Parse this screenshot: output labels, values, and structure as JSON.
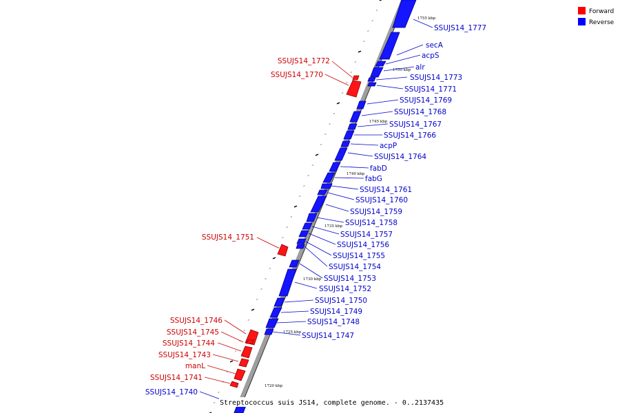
{
  "legend": [
    {
      "label": "Forward",
      "color": "#ff0000"
    },
    {
      "label": "Reverse",
      "color": "#0000ff"
    }
  ],
  "caption": "Streptococcus suis JS14, complete genome. - 0..2137435",
  "ticks": [
    "1755 kbp",
    "1750 kbp",
    "1745 kbp",
    "1740 kbp",
    "1735 kbp",
    "1730 kbp",
    "1725 kbp",
    "1720 kbp"
  ],
  "reverse_genes": [
    "SSUJS14_1777",
    "secA",
    "acpS",
    "alr",
    "SSUJS14_1773",
    "SSUJS14_1771",
    "SSUJS14_1769",
    "SSUJS14_1768",
    "SSUJS14_1767",
    "SSUJS14_1766",
    "acpP",
    "SSUJS14_1764",
    "fabD",
    "fabG",
    "SSUJS14_1761",
    "SSUJS14_1760",
    "SSUJS14_1759",
    "SSUJS14_1758",
    "SSUJS14_1757",
    "SSUJS14_1756",
    "SSUJS14_1755",
    "SSUJS14_1754",
    "SSUJS14_1753",
    "SSUJS14_1752",
    "SSUJS14_1750",
    "SSUJS14_1749",
    "SSUJS14_1748",
    "SSUJS14_1747",
    "SSUJS14_1740"
  ],
  "forward_genes": [
    "SSUJS14_1772",
    "SSUJS14_1770",
    "SSUJS14_1751",
    "SSUJS14_1746",
    "SSUJS14_1745",
    "SSUJS14_1744",
    "SSUJS14_1743",
    "manL",
    "SSUJS14_1741"
  ]
}
